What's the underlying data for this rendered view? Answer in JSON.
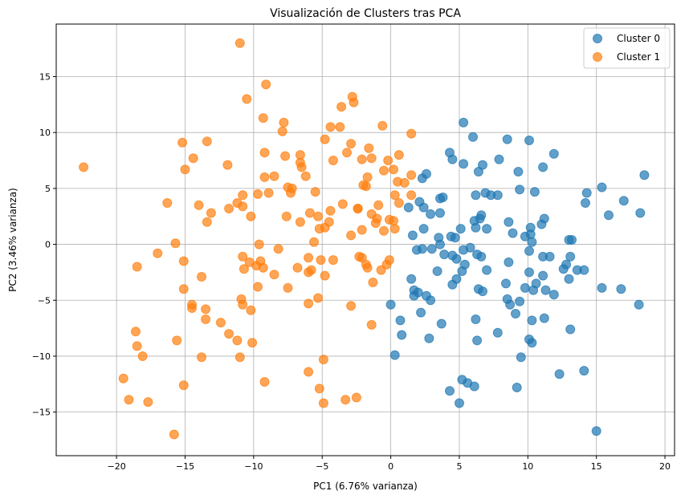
{
  "chart_data": {
    "type": "scatter",
    "title": "Visualización de Clusters tras PCA",
    "xlabel": "PC1 (6.76% varianza)",
    "ylabel": "PC2 (3.46% varianza)",
    "xlim": [
      -24.4,
      20.7
    ],
    "ylim": [
      -18.9,
      19.7
    ],
    "xticks": [
      -20,
      -15,
      -10,
      -5,
      0,
      5,
      10,
      15,
      20
    ],
    "yticks": [
      -15,
      -10,
      -5,
      0,
      5,
      10,
      15
    ],
    "xtick_labels": [
      "−20",
      "−15",
      "−10",
      "−5",
      "0",
      "5",
      "10",
      "15",
      "20"
    ],
    "ytick_labels": [
      "−15",
      "−10",
      "−5",
      "0",
      "5",
      "10",
      "15"
    ],
    "grid": true,
    "legend_position": "top-right",
    "series": [
      {
        "name": "Cluster 0",
        "color": "#1f77b4",
        "points": [
          [
            5.3,
            10.9
          ],
          [
            6.0,
            9.6
          ],
          [
            8.5,
            9.4
          ],
          [
            10.1,
            9.3
          ],
          [
            4.3,
            8.2
          ],
          [
            11.9,
            8.1
          ],
          [
            4.5,
            7.6
          ],
          [
            7.9,
            7.6
          ],
          [
            5.3,
            7.2
          ],
          [
            6.7,
            7.1
          ],
          [
            11.1,
            6.9
          ],
          [
            18.5,
            6.2
          ],
          [
            9.3,
            6.5
          ],
          [
            6.4,
            6.5
          ],
          [
            2.6,
            6.3
          ],
          [
            2.3,
            5.9
          ],
          [
            9.4,
            4.9
          ],
          [
            15.4,
            5.1
          ],
          [
            6.9,
            4.6
          ],
          [
            10.5,
            4.7
          ],
          [
            14.3,
            4.6
          ],
          [
            6.2,
            4.4
          ],
          [
            7.3,
            4.4
          ],
          [
            7.8,
            4.4
          ],
          [
            3.6,
            4.1
          ],
          [
            14.2,
            3.7
          ],
          [
            3.8,
            4.2
          ],
          [
            2.1,
            3.8
          ],
          [
            2.4,
            3.3
          ],
          [
            1.3,
            3.3
          ],
          [
            15.9,
            2.6
          ],
          [
            17.0,
            3.9
          ],
          [
            18.2,
            2.8
          ],
          [
            3.6,
            2.8
          ],
          [
            6.6,
            2.6
          ],
          [
            6.5,
            2.3
          ],
          [
            11.2,
            2.3
          ],
          [
            11.0,
            1.8
          ],
          [
            2.9,
            2.7
          ],
          [
            6.1,
            2.1
          ],
          [
            8.6,
            2.0
          ],
          [
            10.2,
            1.5
          ],
          [
            5.1,
            1.4
          ],
          [
            7.0,
            1.4
          ],
          [
            2.4,
            1.4
          ],
          [
            6.2,
            1.5
          ],
          [
            10.2,
            0.9
          ],
          [
            8.9,
            1.0
          ],
          [
            9.8,
            0.7
          ],
          [
            1.6,
            0.8
          ],
          [
            4.4,
            0.7
          ],
          [
            3.5,
            0.6
          ],
          [
            13.0,
            0.4
          ],
          [
            13.2,
            0.4
          ],
          [
            10.3,
            0.2
          ],
          [
            4.7,
            0.6
          ],
          [
            2.3,
            -0.4
          ],
          [
            3.0,
            -0.4
          ],
          [
            3.6,
            0.0
          ],
          [
            1.9,
            -0.5
          ],
          [
            5.3,
            -0.5
          ],
          [
            5.8,
            -0.3
          ],
          [
            10.1,
            -0.6
          ],
          [
            6.3,
            -0.9
          ],
          [
            11.1,
            -1.1
          ],
          [
            3.9,
            -0.9
          ],
          [
            4.5,
            -1.0
          ],
          [
            11.6,
            -1.1
          ],
          [
            13.1,
            -1.1
          ],
          [
            4.8,
            -1.3
          ],
          [
            6.6,
            -1.1
          ],
          [
            5.4,
            -1.8
          ],
          [
            8.6,
            -1.6
          ],
          [
            12.8,
            -1.8
          ],
          [
            12.6,
            -2.2
          ],
          [
            14.1,
            -2.3
          ],
          [
            13.6,
            -2.3
          ],
          [
            7.0,
            -2.3
          ],
          [
            10.1,
            -2.5
          ],
          [
            3.4,
            -2.4
          ],
          [
            5.2,
            -2.4
          ],
          [
            11.1,
            -2.8
          ],
          [
            13.0,
            -3.1
          ],
          [
            1.5,
            -3.1
          ],
          [
            4.8,
            -3.1
          ],
          [
            4.5,
            -3.6
          ],
          [
            8.4,
            -3.5
          ],
          [
            10.6,
            -3.5
          ],
          [
            10.4,
            -4.1
          ],
          [
            11.3,
            -4.1
          ],
          [
            15.4,
            -3.9
          ],
          [
            16.8,
            -4.0
          ],
          [
            9.8,
            -3.9
          ],
          [
            6.4,
            -4.0
          ],
          [
            6.7,
            -4.2
          ],
          [
            1.7,
            -4.1
          ],
          [
            2.0,
            -4.3
          ],
          [
            11.9,
            -4.5
          ],
          [
            1.7,
            -4.6
          ],
          [
            2.6,
            -4.6
          ],
          [
            8.5,
            -4.9
          ],
          [
            9.4,
            -5.1
          ],
          [
            2.9,
            -5.0
          ],
          [
            18.1,
            -5.4
          ],
          [
            8.7,
            -5.4
          ],
          [
            0.0,
            -5.4
          ],
          [
            9.1,
            -6.2
          ],
          [
            2.2,
            -6.1
          ],
          [
            6.2,
            -6.7
          ],
          [
            0.7,
            -6.8
          ],
          [
            11.2,
            -6.6
          ],
          [
            10.3,
            -6.8
          ],
          [
            3.7,
            -7.1
          ],
          [
            13.1,
            -7.6
          ],
          [
            7.8,
            -7.9
          ],
          [
            0.8,
            -8.1
          ],
          [
            2.8,
            -8.4
          ],
          [
            10.1,
            -8.5
          ],
          [
            6.3,
            -8.6
          ],
          [
            10.3,
            -8.8
          ],
          [
            0.3,
            -9.9
          ],
          [
            9.5,
            -10.1
          ],
          [
            14.1,
            -11.3
          ],
          [
            12.3,
            -11.6
          ],
          [
            5.2,
            -12.1
          ],
          [
            5.6,
            -12.4
          ],
          [
            6.1,
            -12.7
          ],
          [
            9.2,
            -12.8
          ],
          [
            4.3,
            -13.1
          ],
          [
            5.0,
            -14.2
          ],
          [
            15.0,
            -16.7
          ]
        ]
      },
      {
        "name": "Cluster 1",
        "color": "#ff7f0e",
        "points": [
          [
            -11.0,
            18.0
          ],
          [
            -9.1,
            14.3
          ],
          [
            -10.5,
            13.0
          ],
          [
            -2.8,
            13.2
          ],
          [
            -3.6,
            12.3
          ],
          [
            -2.7,
            12.7
          ],
          [
            -9.3,
            11.3
          ],
          [
            -7.8,
            10.9
          ],
          [
            -7.9,
            10.1
          ],
          [
            -4.4,
            10.5
          ],
          [
            -3.7,
            10.5
          ],
          [
            -0.6,
            10.6
          ],
          [
            1.5,
            9.9
          ],
          [
            -15.2,
            9.1
          ],
          [
            -13.4,
            9.2
          ],
          [
            -4.8,
            9.4
          ],
          [
            -2.9,
            9.0
          ],
          [
            -3.2,
            8.2
          ],
          [
            -9.2,
            8.2
          ],
          [
            -1.6,
            8.6
          ],
          [
            -6.6,
            8.0
          ],
          [
            0.6,
            8.0
          ],
          [
            -14.4,
            7.7
          ],
          [
            -6.6,
            7.3
          ],
          [
            -1.4,
            7.7
          ],
          [
            -7.7,
            7.9
          ],
          [
            -4.2,
            7.5
          ],
          [
            -2.1,
            7.6
          ],
          [
            -22.4,
            6.9
          ],
          [
            -11.9,
            7.1
          ],
          [
            -6.5,
            6.9
          ],
          [
            -15.0,
            6.7
          ],
          [
            0.2,
            6.7
          ],
          [
            -0.2,
            7.5
          ],
          [
            -8.5,
            6.1
          ],
          [
            -9.2,
            6.0
          ],
          [
            -6.2,
            6.1
          ],
          [
            -1.7,
            6.0
          ],
          [
            1.5,
            6.2
          ],
          [
            -0.5,
            6.6
          ],
          [
            0.5,
            5.6
          ],
          [
            -1.8,
            5.2
          ],
          [
            -2.0,
            5.3
          ],
          [
            1.0,
            5.5
          ],
          [
            -7.2,
            5.0
          ],
          [
            -7.5,
            5.1
          ],
          [
            -8.9,
            4.6
          ],
          [
            -10.8,
            4.4
          ],
          [
            -5.5,
            4.7
          ],
          [
            -7.3,
            4.6
          ],
          [
            -9.7,
            4.5
          ],
          [
            0.3,
            4.4
          ],
          [
            1.5,
            4.4
          ],
          [
            -16.3,
            3.7
          ],
          [
            -14.0,
            3.5
          ],
          [
            -11.2,
            3.7
          ],
          [
            -10.8,
            3.4
          ],
          [
            -3.5,
            3.6
          ],
          [
            -2.4,
            3.2
          ],
          [
            -0.9,
            3.5
          ],
          [
            0.6,
            3.7
          ],
          [
            -13.1,
            2.8
          ],
          [
            -11.8,
            3.2
          ],
          [
            -10.2,
            2.5
          ],
          [
            -5.9,
            2.8
          ],
          [
            -4.4,
            3.0
          ],
          [
            -7.6,
            2.5
          ],
          [
            -5.3,
            2.5
          ],
          [
            -1.4,
            2.7
          ],
          [
            -0.1,
            2.2
          ],
          [
            -13.4,
            2.0
          ],
          [
            -6.6,
            2.0
          ],
          [
            -2.4,
            3.2
          ],
          [
            -4.5,
            2.0
          ],
          [
            -1.0,
            2.3
          ],
          [
            0.2,
            2.1
          ],
          [
            -1.1,
            1.9
          ],
          [
            -4.8,
            1.5
          ],
          [
            -5.2,
            1.4
          ],
          [
            -2.1,
            1.3
          ],
          [
            -0.5,
            1.2
          ],
          [
            0.3,
            1.4
          ],
          [
            -15.7,
            0.1
          ],
          [
            -9.6,
            0.0
          ],
          [
            -5.6,
            0.2
          ],
          [
            -2.9,
            0.8
          ],
          [
            -10.8,
            -1.1
          ],
          [
            -17.0,
            -0.8
          ],
          [
            -8.2,
            -0.4
          ],
          [
            -6.0,
            -1.2
          ],
          [
            -10.3,
            -1.6
          ],
          [
            -9.5,
            -1.5
          ],
          [
            -5.1,
            -1.4
          ],
          [
            -4.2,
            -1.4
          ],
          [
            -18.5,
            -2.0
          ],
          [
            -15.1,
            -1.5
          ],
          [
            -10.7,
            -2.2
          ],
          [
            -9.8,
            -1.9
          ],
          [
            -9.3,
            -2.1
          ],
          [
            -6.8,
            -2.1
          ],
          [
            -2.3,
            -1.1
          ],
          [
            -2.1,
            -1.2
          ],
          [
            -1.8,
            -1.8
          ],
          [
            -0.1,
            -1.4
          ],
          [
            -0.3,
            -1.8
          ],
          [
            -1.7,
            -2.1
          ],
          [
            -0.7,
            -2.3
          ],
          [
            -6.0,
            -2.5
          ],
          [
            -5.8,
            -2.3
          ],
          [
            -8.5,
            -2.7
          ],
          [
            -4.8,
            -2.8
          ],
          [
            -13.8,
            -2.9
          ],
          [
            -9.7,
            -3.8
          ],
          [
            -7.5,
            -3.9
          ],
          [
            -1.3,
            -3.4
          ],
          [
            -15.1,
            -4.0
          ],
          [
            -10.9,
            -4.9
          ],
          [
            -10.8,
            -5.4
          ],
          [
            -5.3,
            -4.8
          ],
          [
            -6.0,
            -5.3
          ],
          [
            -2.9,
            -5.5
          ],
          [
            -14.5,
            -5.4
          ],
          [
            -14.5,
            -5.7
          ],
          [
            -13.5,
            -5.8
          ],
          [
            -10.2,
            -5.9
          ],
          [
            -13.5,
            -6.7
          ],
          [
            -12.4,
            -7.0
          ],
          [
            -1.4,
            -7.2
          ],
          [
            -18.6,
            -7.8
          ],
          [
            -11.8,
            -8.0
          ],
          [
            -15.6,
            -8.6
          ],
          [
            -11.2,
            -8.6
          ],
          [
            -10.1,
            -8.8
          ],
          [
            -18.5,
            -9.1
          ],
          [
            -18.1,
            -10.0
          ],
          [
            -13.8,
            -10.1
          ],
          [
            -11.0,
            -10.1
          ],
          [
            -4.9,
            -10.3
          ],
          [
            -19.5,
            -12.0
          ],
          [
            -6.0,
            -11.4
          ],
          [
            -9.2,
            -12.3
          ],
          [
            -15.1,
            -12.6
          ],
          [
            -5.2,
            -12.9
          ],
          [
            -19.1,
            -13.9
          ],
          [
            -17.7,
            -14.1
          ],
          [
            -4.9,
            -14.2
          ],
          [
            -3.3,
            -13.9
          ],
          [
            -2.5,
            -13.7
          ],
          [
            -15.8,
            -17.0
          ]
        ]
      }
    ]
  }
}
